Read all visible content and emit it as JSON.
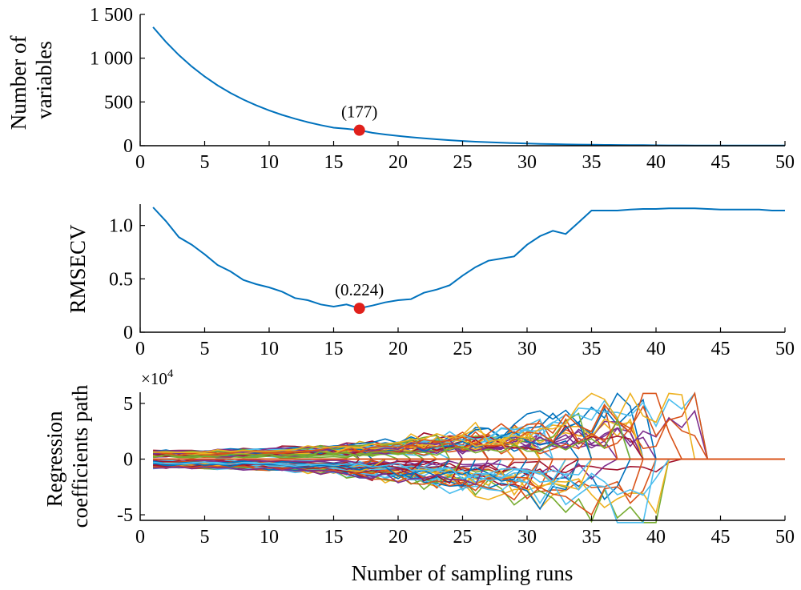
{
  "chart_data": [
    {
      "type": "line",
      "ylabel": "Number of\nvariables",
      "xlim": [
        0,
        50
      ],
      "ylim": [
        0,
        1500
      ],
      "xticks": [
        0,
        5,
        10,
        15,
        20,
        25,
        30,
        35,
        40,
        45,
        50
      ],
      "yticks": [
        0,
        500,
        1000,
        1500
      ],
      "ytick_labels": [
        "0",
        "500",
        "1 000",
        "1 500"
      ],
      "x": [
        1,
        2,
        3,
        4,
        5,
        6,
        7,
        8,
        9,
        10,
        11,
        12,
        13,
        14,
        15,
        16,
        17,
        18,
        19,
        20,
        21,
        22,
        23,
        24,
        25,
        26,
        27,
        28,
        29,
        30,
        31,
        32,
        33,
        34,
        35,
        36,
        37,
        38,
        39,
        40,
        41,
        42,
        43,
        44,
        45,
        46,
        47,
        48,
        49,
        50
      ],
      "series": [
        {
          "color": "#0072BD",
          "values": [
            1355,
            1185,
            1035,
            905,
            790,
            690,
            603,
            527,
            461,
            403,
            352,
            308,
            269,
            235,
            206,
            193,
            177,
            147,
            128,
            112,
            97,
            84,
            73,
            63,
            54,
            46,
            40,
            34,
            29,
            25,
            21,
            18,
            15,
            13,
            11,
            9,
            8,
            7,
            6,
            5,
            4,
            4,
            3,
            3,
            3,
            2,
            2,
            2,
            2,
            2
          ]
        }
      ],
      "highlight": {
        "x": 17,
        "y": 177,
        "label": "(177)",
        "color": "#E0201B"
      }
    },
    {
      "type": "line",
      "ylabel": "RMSECV",
      "xlim": [
        0,
        50
      ],
      "ylim": [
        0,
        1.2
      ],
      "xticks": [
        0,
        5,
        10,
        15,
        20,
        25,
        30,
        35,
        40,
        45,
        50
      ],
      "yticks": [
        0,
        0.5,
        1.0
      ],
      "ytick_labels": [
        "0",
        "0.5",
        "1.0"
      ],
      "x": [
        1,
        2,
        3,
        4,
        5,
        6,
        7,
        8,
        9,
        10,
        11,
        12,
        13,
        14,
        15,
        16,
        17,
        18,
        19,
        20,
        21,
        22,
        23,
        24,
        25,
        26,
        27,
        28,
        29,
        30,
        31,
        32,
        33,
        34,
        35,
        36,
        37,
        38,
        39,
        40,
        41,
        42,
        43,
        44,
        45,
        46,
        47,
        48,
        49,
        50
      ],
      "series": [
        {
          "color": "#0072BD",
          "values": [
            1.17,
            1.04,
            0.89,
            0.82,
            0.73,
            0.63,
            0.57,
            0.49,
            0.45,
            0.42,
            0.38,
            0.32,
            0.3,
            0.26,
            0.24,
            0.26,
            0.224,
            0.25,
            0.28,
            0.3,
            0.31,
            0.37,
            0.4,
            0.44,
            0.53,
            0.61,
            0.67,
            0.69,
            0.71,
            0.82,
            0.9,
            0.95,
            0.92,
            1.03,
            1.14,
            1.14,
            1.14,
            1.15,
            1.155,
            1.155,
            1.16,
            1.16,
            1.16,
            1.155,
            1.15,
            1.15,
            1.15,
            1.15,
            1.14,
            1.14
          ]
        }
      ],
      "highlight": {
        "x": 17,
        "y": 0.224,
        "label": "(0.224)",
        "color": "#E0201B"
      }
    },
    {
      "type": "line",
      "ylabel": "Regression\ncoefficients path",
      "xlabel": "Number of sampling runs",
      "exponent_label": "×10",
      "exponent_power": "4",
      "xlim": [
        0,
        50
      ],
      "ylim": [
        -5.5,
        6
      ],
      "xticks": [
        0,
        5,
        10,
        15,
        20,
        25,
        30,
        35,
        40,
        45,
        50
      ],
      "yticks": [
        -5,
        0,
        5
      ],
      "ytick_labels": [
        "-5",
        "0",
        "5"
      ],
      "colors": [
        "#0072BD",
        "#D95319",
        "#EDB120",
        "#7E2F8E",
        "#77AC30",
        "#4DBEEE",
        "#A2142F"
      ]
    }
  ]
}
